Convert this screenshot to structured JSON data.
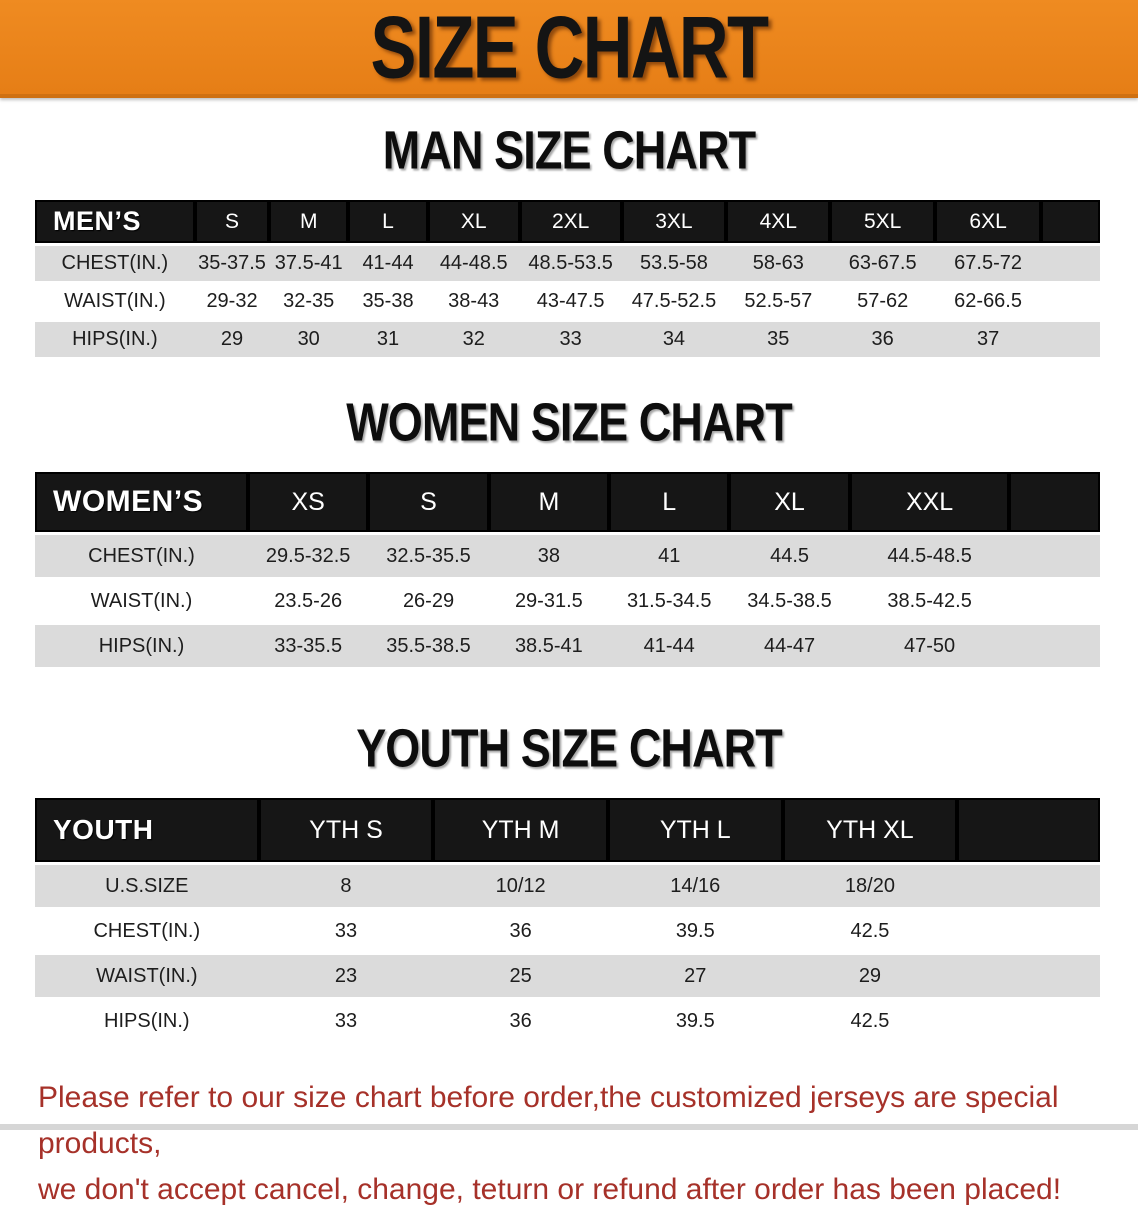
{
  "banner": {
    "title": "SIZE CHART",
    "bg_color": "#e8821c",
    "text_color": "#141414"
  },
  "colors": {
    "table_header_bg": "#161616",
    "table_header_text": "#ffffff",
    "row_stripe_gray": "#dbdbdb",
    "row_stripe_white": "#ffffff",
    "disclaimer_red": "#a63129"
  },
  "sections": [
    {
      "heading": "MAN SIZE CHART",
      "table": {
        "header_label": "MEN’S",
        "columns": [
          "S",
          "M",
          "L",
          "XL",
          "2XL",
          "3XL",
          "4XL",
          "5XL",
          "6XL"
        ],
        "rows": [
          {
            "label": "CHEST(IN.)",
            "values": [
              "35-37.5",
              "37.5-41",
              "41-44",
              "44-48.5",
              "48.5-53.5",
              "53.5-58",
              "58-63",
              "63-67.5",
              "67.5-72"
            ]
          },
          {
            "label": "WAIST(IN.)",
            "values": [
              "29-32",
              "32-35",
              "35-38",
              "38-43",
              "43-47.5",
              "47.5-52.5",
              "52.5-57",
              "57-62",
              "62-66.5"
            ]
          },
          {
            "label": "HIPS(IN.)",
            "values": [
              "29",
              "30",
              "31",
              "32",
              "33",
              "34",
              "35",
              "36",
              "37"
            ]
          }
        ]
      }
    },
    {
      "heading": "WOMEN SIZE CHART",
      "table": {
        "header_label": "WOMEN’S",
        "columns": [
          "XS",
          "S",
          "M",
          "L",
          "XL",
          "XXL"
        ],
        "rows": [
          {
            "label": "CHEST(IN.)",
            "values": [
              "29.5-32.5",
              "32.5-35.5",
              "38",
              "41",
              "44.5",
              "44.5-48.5"
            ]
          },
          {
            "label": "WAIST(IN.)",
            "values": [
              "23.5-26",
              "26-29",
              "29-31.5",
              "31.5-34.5",
              "34.5-38.5",
              "38.5-42.5"
            ]
          },
          {
            "label": "HIPS(IN.)",
            "values": [
              "33-35.5",
              "35.5-38.5",
              "38.5-41",
              "41-44",
              "44-47",
              "47-50"
            ]
          }
        ]
      }
    },
    {
      "heading": "YOUTH SIZE CHART",
      "table": {
        "header_label": "YOUTH",
        "columns": [
          "YTH S",
          "YTH M",
          "YTH L",
          "YTH XL"
        ],
        "rows": [
          {
            "label": "U.S.SIZE",
            "values": [
              "8",
              "10/12",
              "14/16",
              "18/20"
            ]
          },
          {
            "label": "CHEST(IN.)",
            "values": [
              "33",
              "36",
              "39.5",
              "42.5"
            ]
          },
          {
            "label": "WAIST(IN.)",
            "values": [
              "23",
              "25",
              "27",
              "29"
            ]
          },
          {
            "label": "HIPS(IN.)",
            "values": [
              "33",
              "36",
              "39.5",
              "42.5"
            ]
          }
        ]
      }
    }
  ],
  "disclaimer": {
    "line1": "Please refer to our size chart before order,the customized jerseys are special products,",
    "line2": "we don't accept cancel, change, teturn or refund after order has been placed!"
  }
}
